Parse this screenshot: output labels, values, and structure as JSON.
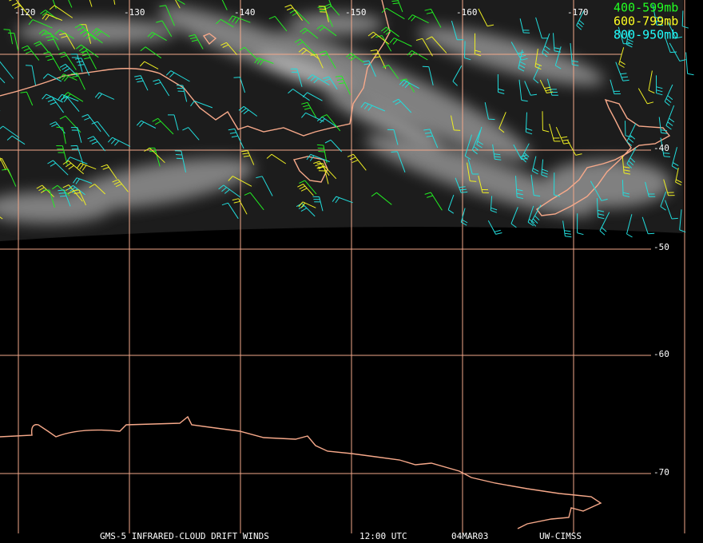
{
  "map": {
    "longitude_labels": [
      "-120",
      "-130",
      "-140",
      "-150",
      "-160",
      "-170"
    ],
    "latitude_labels": [
      "-40",
      "-50",
      "-60",
      "-70"
    ],
    "legend": [
      "400-599mb",
      "600-799mb",
      "800-950mb"
    ],
    "footer": [
      "GMS-5 INFRARED-CLOUD DRIFT WINDS",
      "12:00 UTC",
      "04MAR03",
      "UW-CIMSS"
    ]
  }
}
